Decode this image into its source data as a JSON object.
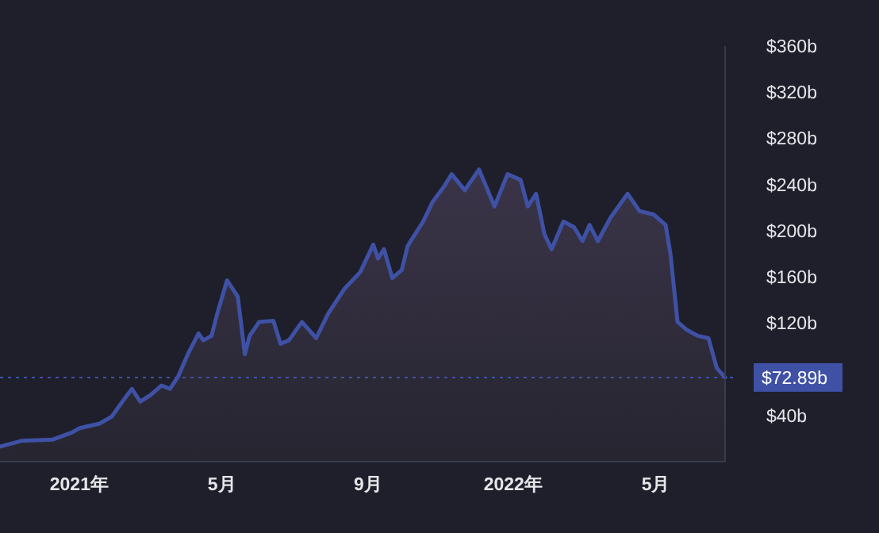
{
  "chart_data": {
    "type": "area",
    "color": "#3f51a5",
    "x": [
      "2020-10-26",
      "2020-11-13",
      "2020-12-09",
      "2020-12-25",
      "2021-01-01",
      "2021-01-18",
      "2021-01-28",
      "2021-02-06",
      "2021-02-14",
      "2021-02-21",
      "2021-03-02",
      "2021-03-11",
      "2021-03-18",
      "2021-03-25",
      "2021-04-02",
      "2021-04-11",
      "2021-04-15",
      "2021-04-22",
      "2021-04-27",
      "2021-05-05",
      "2021-05-14",
      "2021-05-20",
      "2021-05-24",
      "2021-06-01",
      "2021-06-13",
      "2021-06-19",
      "2021-06-26",
      "2021-07-07",
      "2021-07-19",
      "2021-07-29",
      "2021-08-12",
      "2021-08-25",
      "2021-09-05",
      "2021-09-09",
      "2021-09-14",
      "2021-09-21",
      "2021-09-29",
      "2021-10-04",
      "2021-10-17",
      "2021-10-25",
      "2021-11-04",
      "2021-11-10",
      "2021-11-21",
      "2021-12-03",
      "2021-12-16",
      "2021-12-27",
      "2022-01-07",
      "2022-01-13",
      "2022-01-20",
      "2022-01-27",
      "2022-02-02",
      "2022-02-12",
      "2022-02-21",
      "2022-02-28",
      "2022-03-06",
      "2022-03-13",
      "2022-03-24",
      "2022-04-07",
      "2022-04-17",
      "2022-04-29",
      "2022-05-09",
      "2022-05-13",
      "2022-05-19",
      "2022-05-27",
      "2022-06-05",
      "2022-06-14",
      "2022-06-21",
      "2022-06-28"
    ],
    "values": [
      13,
      18,
      19,
      25,
      29,
      33,
      39,
      52,
      63,
      52,
      58,
      66,
      63,
      74,
      93,
      111,
      105,
      109,
      129,
      157,
      143,
      93,
      109,
      121,
      122,
      102,
      105,
      121,
      107,
      128,
      150,
      164,
      188,
      176,
      184,
      159,
      166,
      187,
      208,
      225,
      239,
      249,
      235,
      253,
      221,
      249,
      244,
      221,
      232,
      197,
      184,
      208,
      203,
      191,
      205,
      191,
      212,
      232,
      217,
      214,
      205,
      180,
      121,
      114,
      109,
      107,
      81,
      72.89
    ],
    "xlim": [
      "2020-10-26",
      "2022-06-28"
    ],
    "ylim": [
      0,
      360
    ],
    "xticks": [
      {
        "value": "2021-01-01",
        "label": "2021年"
      },
      {
        "value": "2021-05-01",
        "label": "5月"
      },
      {
        "value": "2021-09-01",
        "label": "9月"
      },
      {
        "value": "2022-01-01",
        "label": "2022年"
      },
      {
        "value": "2022-05-01",
        "label": "5月"
      }
    ],
    "yticks": [
      {
        "value": 40,
        "label": "$40b"
      },
      {
        "value": 120,
        "label": "$120b"
      },
      {
        "value": 160,
        "label": "$160b"
      },
      {
        "value": 200,
        "label": "$200b"
      },
      {
        "value": 240,
        "label": "$240b"
      },
      {
        "value": 280,
        "label": "$280b"
      },
      {
        "value": 320,
        "label": "$320b"
      },
      {
        "value": 360,
        "label": "$360b"
      }
    ],
    "ref_lines": [
      {
        "axis": "y",
        "value": 72.89,
        "label": "$72.89b",
        "color": "#3f51a5",
        "line_style": "dotted"
      }
    ]
  }
}
